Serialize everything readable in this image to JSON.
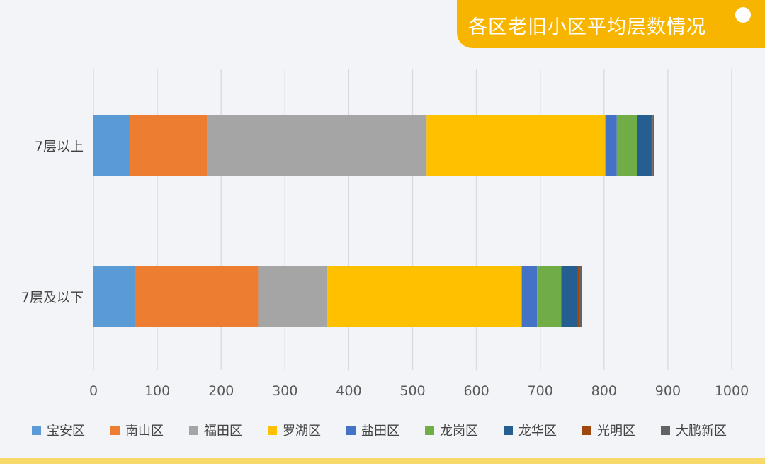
{
  "header": {
    "title": "各区老旧小区平均层数情况"
  },
  "chart_data": {
    "type": "bar",
    "orientation": "horizontal",
    "stacked": true,
    "title": "各区老旧小区平均层数情况",
    "xlabel": "",
    "ylabel": "",
    "xlim": [
      0,
      1000
    ],
    "xticks": [
      "0",
      "100",
      "200",
      "300",
      "400",
      "500",
      "600",
      "700",
      "800",
      "900",
      "1000"
    ],
    "grid": true,
    "legend_position": "bottom",
    "categories": [
      "7层以上",
      "7层及以下"
    ],
    "series": [
      {
        "name": "宝安区",
        "color": "#5b9bd5",
        "values": [
          57,
          65
        ]
      },
      {
        "name": "南山区",
        "color": "#ed7d31",
        "values": [
          121,
          193
        ]
      },
      {
        "name": "福田区",
        "color": "#a5a5a5",
        "values": [
          344,
          108
        ]
      },
      {
        "name": "罗湖区",
        "color": "#ffc000",
        "values": [
          280,
          305
        ]
      },
      {
        "name": "盐田区",
        "color": "#4472c4",
        "values": [
          18,
          24
        ]
      },
      {
        "name": "龙岗区",
        "color": "#70ad47",
        "values": [
          32,
          38
        ]
      },
      {
        "name": "龙华区",
        "color": "#255e91",
        "values": [
          22,
          25
        ]
      },
      {
        "name": "光明区",
        "color": "#9e480e",
        "values": [
          2,
          3
        ]
      },
      {
        "name": "大鹏新区",
        "color": "#636363",
        "values": [
          2,
          4
        ]
      }
    ]
  }
}
